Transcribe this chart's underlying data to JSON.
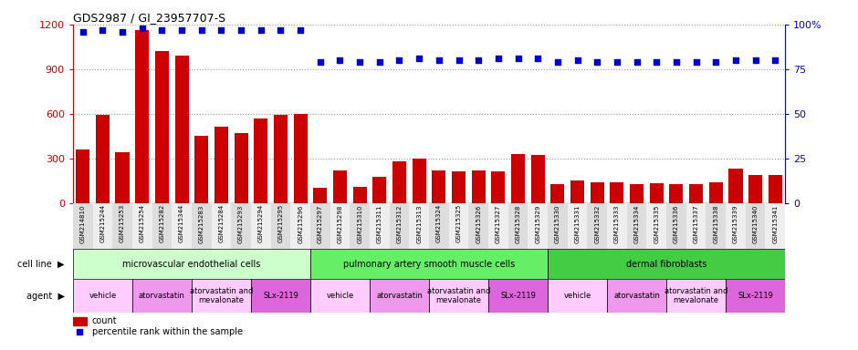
{
  "title": "GDS2987 / GI_23957707-S",
  "samples": [
    "GSM214810",
    "GSM215244",
    "GSM215253",
    "GSM215254",
    "GSM215282",
    "GSM215344",
    "GSM215283",
    "GSM215284",
    "GSM215293",
    "GSM215294",
    "GSM215295",
    "GSM215296",
    "GSM215297",
    "GSM215298",
    "GSM215310",
    "GSM215311",
    "GSM215312",
    "GSM215313",
    "GSM215324",
    "GSM215325",
    "GSM215326",
    "GSM215327",
    "GSM215328",
    "GSM215329",
    "GSM215330",
    "GSM215331",
    "GSM215332",
    "GSM215333",
    "GSM215334",
    "GSM215335",
    "GSM215336",
    "GSM215337",
    "GSM215338",
    "GSM215339",
    "GSM215340",
    "GSM215341"
  ],
  "counts": [
    360,
    590,
    340,
    1160,
    1020,
    990,
    450,
    510,
    470,
    570,
    590,
    600,
    100,
    220,
    110,
    175,
    280,
    300,
    220,
    215,
    220,
    215,
    330,
    320,
    130,
    150,
    140,
    140,
    130,
    135,
    130,
    130,
    140,
    230,
    190,
    190
  ],
  "percentiles": [
    96,
    97,
    96,
    98,
    97,
    97,
    97,
    97,
    97,
    97,
    97,
    97,
    79,
    80,
    79,
    79,
    80,
    81,
    80,
    80,
    80,
    81,
    81,
    81,
    79,
    80,
    79,
    79,
    79,
    79,
    79,
    79,
    79,
    80,
    80,
    80
  ],
  "cell_line_groups": [
    {
      "label": "microvascular endothelial cells",
      "start": 0,
      "end": 12,
      "color": "#ccffcc"
    },
    {
      "label": "pulmonary artery smooth muscle cells",
      "start": 12,
      "end": 24,
      "color": "#66ee66"
    },
    {
      "label": "dermal fibroblasts",
      "start": 24,
      "end": 36,
      "color": "#44cc44"
    }
  ],
  "agent_groups": [
    {
      "label": "vehicle",
      "start": 0,
      "end": 3,
      "color": "#ffccff"
    },
    {
      "label": "atorvastatin",
      "start": 3,
      "end": 6,
      "color": "#ee99ee"
    },
    {
      "label": "atorvastatin and\nmevalonate",
      "start": 6,
      "end": 9,
      "color": "#ffccff"
    },
    {
      "label": "SLx-2119",
      "start": 9,
      "end": 12,
      "color": "#dd66dd"
    },
    {
      "label": "vehicle",
      "start": 12,
      "end": 15,
      "color": "#ffccff"
    },
    {
      "label": "atorvastatin",
      "start": 15,
      "end": 18,
      "color": "#ee99ee"
    },
    {
      "label": "atorvastatin and\nmevalonate",
      "start": 18,
      "end": 21,
      "color": "#ffccff"
    },
    {
      "label": "SLx-2119",
      "start": 21,
      "end": 24,
      "color": "#dd66dd"
    },
    {
      "label": "vehicle",
      "start": 24,
      "end": 27,
      "color": "#ffccff"
    },
    {
      "label": "atorvastatin",
      "start": 27,
      "end": 30,
      "color": "#ee99ee"
    },
    {
      "label": "atorvastatin and\nmevalonate",
      "start": 30,
      "end": 33,
      "color": "#ffccff"
    },
    {
      "label": "SLx-2119",
      "start": 33,
      "end": 36,
      "color": "#dd66dd"
    }
  ],
  "bar_color": "#cc0000",
  "dot_color": "#0000cc",
  "left_ylim": [
    0,
    1200
  ],
  "right_ylim": [
    0,
    100
  ],
  "left_yticks": [
    0,
    300,
    600,
    900,
    1200
  ],
  "right_yticks": [
    0,
    25,
    50,
    75,
    100
  ],
  "left_tick_color": "#cc0000",
  "right_tick_color": "#0000cc",
  "grid_style": ":",
  "bg_color": "#ffffff"
}
